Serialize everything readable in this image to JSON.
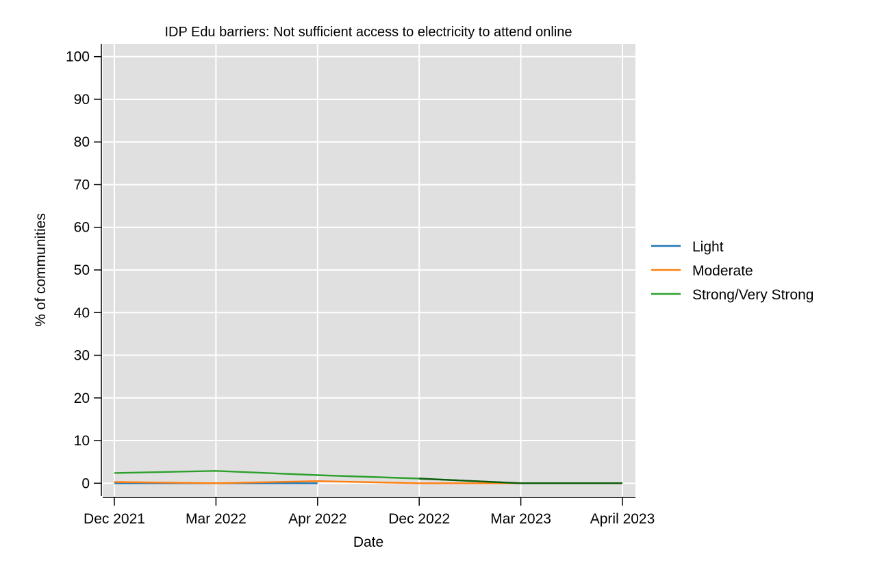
{
  "chart_data": {
    "type": "line",
    "title": "IDP Edu barriers: Not sufficient access to electricity to attend online",
    "xlabel": "Date",
    "ylabel": "% of communities",
    "categories": [
      "Dec 2021",
      "Mar 2022",
      "Apr 2022",
      "Dec 2022",
      "Mar 2023",
      "April 2023"
    ],
    "ylim": [
      -3,
      103
    ],
    "yticks": [
      0,
      10,
      20,
      30,
      40,
      50,
      60,
      70,
      80,
      90,
      100
    ],
    "grid": true,
    "legend_position": "right",
    "series": [
      {
        "name": "Light",
        "color": "#1f77b4",
        "values": [
          0.0,
          0.0,
          0.0,
          null,
          0.0,
          0.0
        ]
      },
      {
        "name": "Moderate",
        "color": "#ff7f0e",
        "values": [
          0.3,
          0.0,
          0.5,
          0.0,
          0.0,
          0.0
        ]
      },
      {
        "name": "Strong/Very Strong",
        "color": "#2ca02c",
        "values": [
          2.4,
          2.9,
          1.9,
          1.1,
          0.0,
          0.0
        ]
      }
    ],
    "overlay_color": "#0b5a0b"
  }
}
